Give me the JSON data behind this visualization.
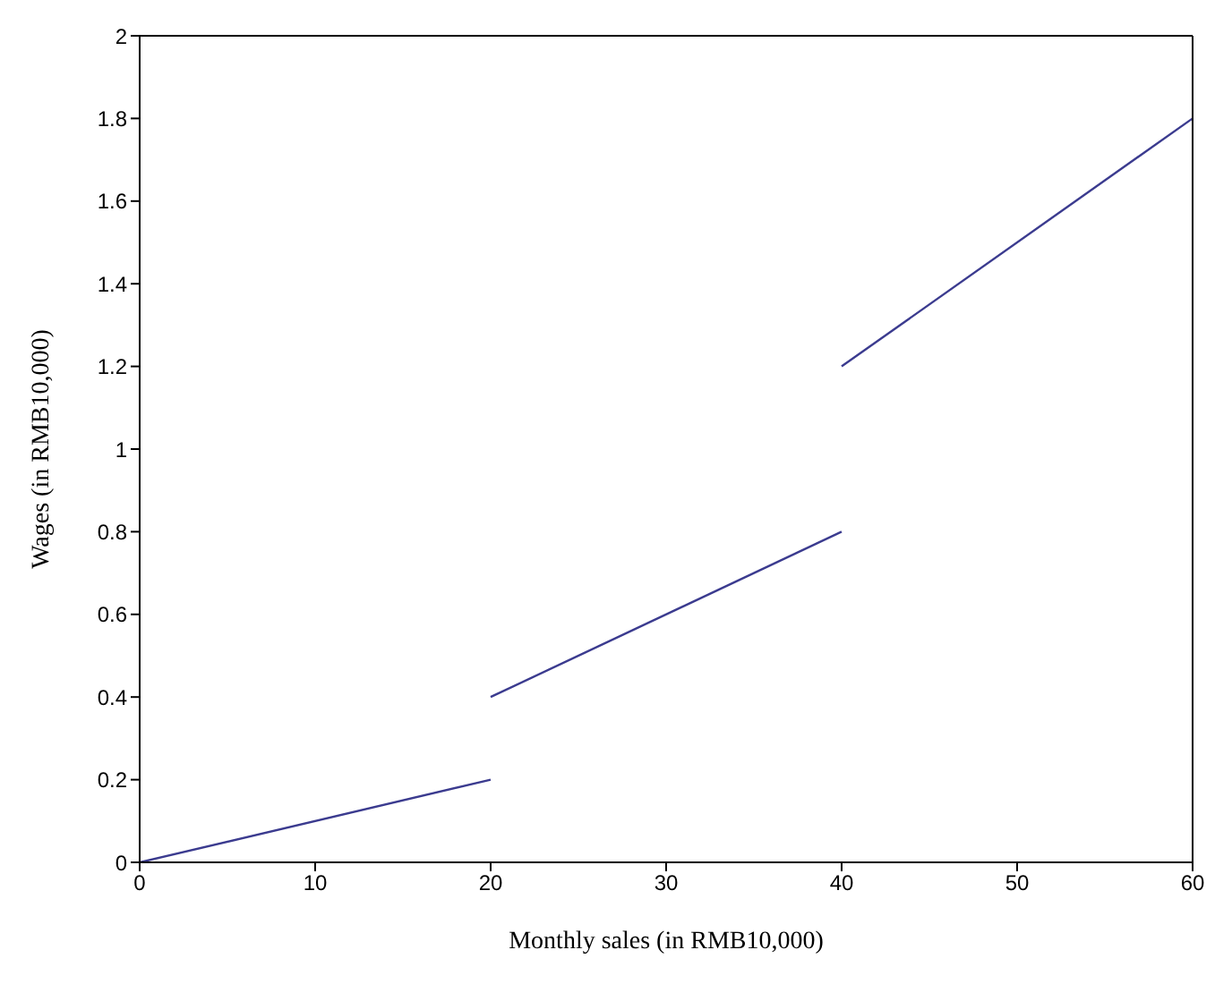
{
  "chart_data": {
    "type": "line",
    "xlabel": "Monthly sales (in RMB10,000)",
    "ylabel": "Wages (in RMB10,000)",
    "series": [
      {
        "x": [
          0,
          20
        ],
        "values": [
          0,
          0.2
        ],
        "color": "#3b3b8f"
      },
      {
        "x": [
          20,
          40
        ],
        "values": [
          0.4,
          0.8
        ],
        "color": "#3b3b8f"
      },
      {
        "x": [
          40,
          60
        ],
        "values": [
          1.2,
          1.8
        ],
        "color": "#3b3b8f"
      }
    ],
    "xlim": [
      0,
      60
    ],
    "xticks": [
      0,
      10,
      20,
      30,
      40,
      50,
      60
    ],
    "ylim": [
      0,
      2
    ],
    "yticks": [
      0,
      0.2,
      0.4,
      0.6,
      0.8,
      1,
      1.2,
      1.4,
      1.6,
      1.8,
      2
    ],
    "marker": "none",
    "line_style": "solid"
  }
}
